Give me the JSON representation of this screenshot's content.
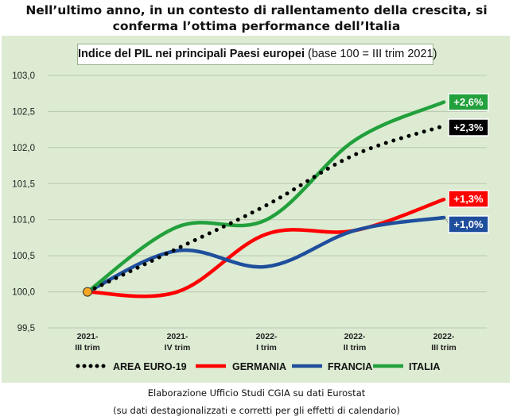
{
  "headline": {
    "line1": "Nell’ultimo anno, in un contesto di rallentamento della crescita, si",
    "line2": "conferma l’ottima performance dell’Italia"
  },
  "subtitle": {
    "bold": "Indice del PIL nei principali Paesi europei",
    "normal": "(base 100 = III trim 2021)"
  },
  "footer": {
    "line1": "Elaborazione Ufficio Studi CGIA su dati Eurostat",
    "line2": "(su dati destagionalizzati e corretti per gli effetti di calendario)"
  },
  "chart_data": {
    "type": "line",
    "categories": [
      [
        "2021-",
        "III trim"
      ],
      [
        "2021-",
        "IV trim"
      ],
      [
        "2022-",
        "I trim"
      ],
      [
        "2022-",
        "II trim"
      ],
      [
        "2022-",
        "III trim"
      ]
    ],
    "ylim": [
      99.5,
      103.0
    ],
    "yticks": [
      {
        "value": 99.5,
        "label": "99,5"
      },
      {
        "value": 100.0,
        "label": "100,0"
      },
      {
        "value": 100.5,
        "label": "100,5"
      },
      {
        "value": 101.0,
        "label": "101,0"
      },
      {
        "value": 101.5,
        "label": "101,5"
      },
      {
        "value": 102.0,
        "label": "102,0"
      },
      {
        "value": 102.5,
        "label": "102,5"
      },
      {
        "value": 103.0,
        "label": "103,0"
      }
    ],
    "grid": "horizontal",
    "legend_position": "bottom",
    "series": [
      {
        "name": "AREA EURO-19",
        "color": "#000000",
        "style": "dotted",
        "values": [
          100.0,
          100.6,
          101.2,
          101.9,
          102.3
        ],
        "end_label": "+2,3%"
      },
      {
        "name": "GERMANIA",
        "color": "#ff0000",
        "style": "solid",
        "values": [
          100.0,
          100.0,
          100.8,
          100.85,
          101.28
        ],
        "end_label": "+1,3%"
      },
      {
        "name": "FRANCIA",
        "color": "#1f4e9c",
        "style": "solid",
        "values": [
          100.0,
          100.57,
          100.35,
          100.85,
          101.03
        ],
        "end_label": "+1,0%"
      },
      {
        "name": "ITALIA",
        "color": "#22a03c",
        "style": "solid",
        "values": [
          100.0,
          100.9,
          101.0,
          102.1,
          102.63
        ],
        "end_label": "+2,6%"
      }
    ],
    "base_marker": {
      "color": "#f5a623",
      "value": 100.0
    }
  }
}
